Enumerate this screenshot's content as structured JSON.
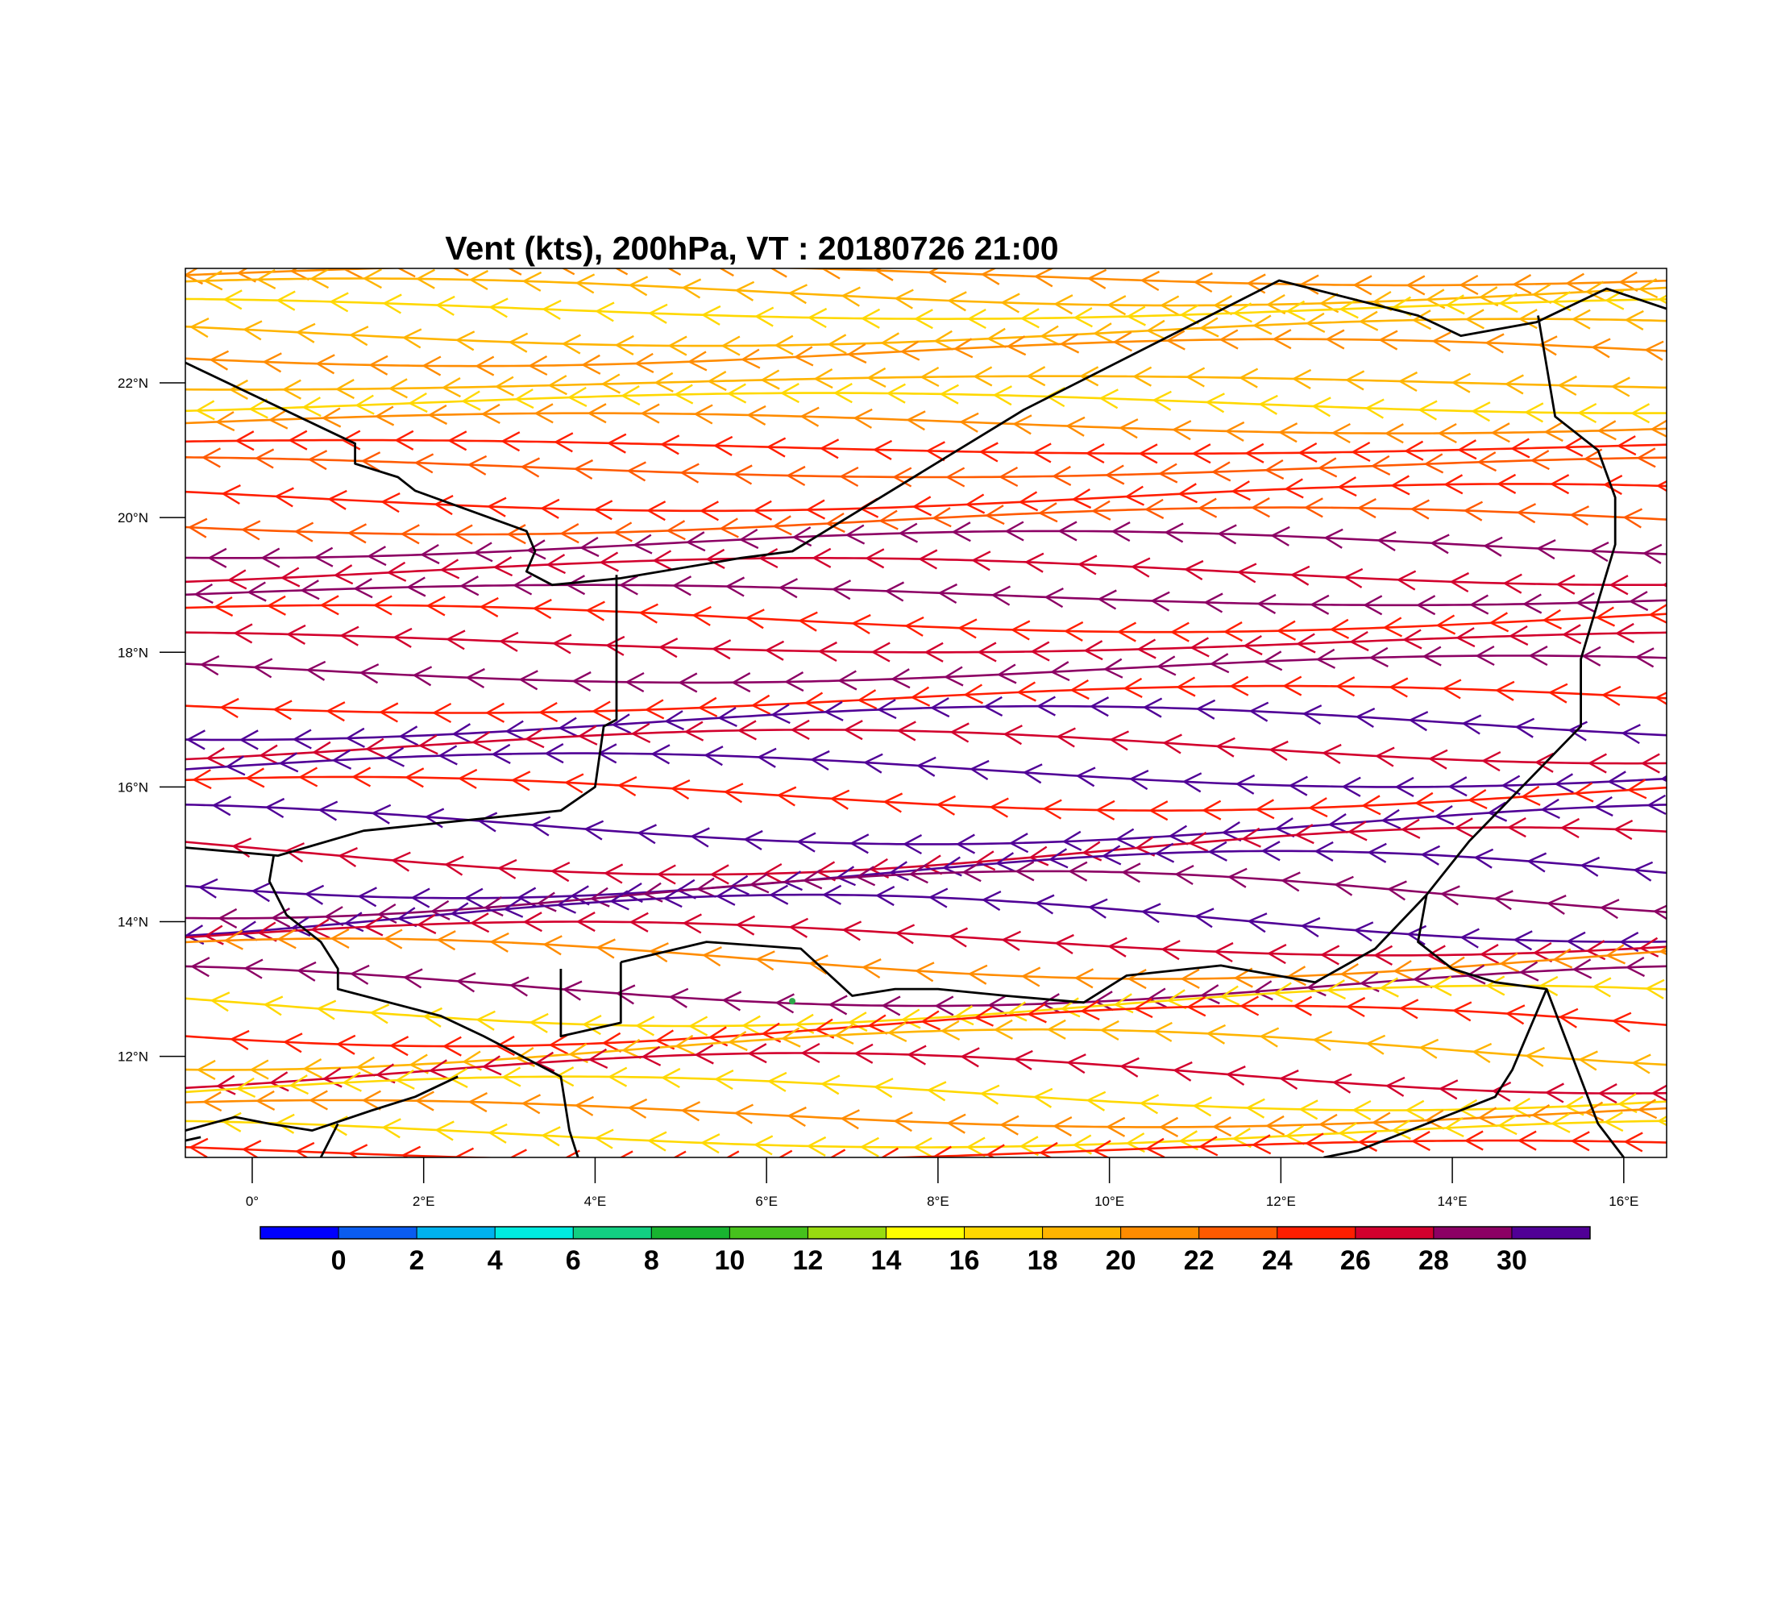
{
  "map": {
    "title": "Vent (kts), 200hPa, VT : 20180726  21:00",
    "lon_range": [
      -0.78,
      16.5
    ],
    "lat_range": [
      10.5,
      23.7
    ],
    "lon_ticks": [
      {
        "lon": 0,
        "label": "0°"
      },
      {
        "lon": 2,
        "label": "2°E"
      },
      {
        "lon": 4,
        "label": "4°E"
      },
      {
        "lon": 6,
        "label": "6°E"
      },
      {
        "lon": 8,
        "label": "8°E"
      },
      {
        "lon": 10,
        "label": "10°E"
      },
      {
        "lon": 12,
        "label": "12°E"
      },
      {
        "lon": 14,
        "label": "14°E"
      },
      {
        "lon": 16,
        "label": "16°E"
      }
    ],
    "lat_ticks": [
      {
        "lat": 12,
        "label": "12°N"
      },
      {
        "lat": 14,
        "label": "14°N"
      },
      {
        "lat": 16,
        "label": "16°N"
      },
      {
        "lat": 18,
        "label": "18°N"
      },
      {
        "lat": 20,
        "label": "20°N"
      },
      {
        "lat": 22,
        "label": "22°N"
      }
    ],
    "wind_direction": "easterly",
    "streamlines": [
      {
        "lat": 23.6,
        "amp": 0.15,
        "speed": 20
      },
      {
        "lat": 23.35,
        "amp": 0.2,
        "speed": 18
      },
      {
        "lat": 23.1,
        "amp": 0.15,
        "speed": 16
      },
      {
        "lat": 22.75,
        "amp": 0.2,
        "speed": 18
      },
      {
        "lat": 22.45,
        "amp": 0.2,
        "speed": 20
      },
      {
        "lat": 22.0,
        "amp": 0.1,
        "speed": 19
      },
      {
        "lat": 21.7,
        "amp": 0.15,
        "speed": 17
      },
      {
        "lat": 21.4,
        "amp": 0.15,
        "speed": 21
      },
      {
        "lat": 21.05,
        "amp": 0.1,
        "speed": 24
      },
      {
        "lat": 20.75,
        "amp": 0.15,
        "speed": 22
      },
      {
        "lat": 20.3,
        "amp": 0.2,
        "speed": 25
      },
      {
        "lat": 19.95,
        "amp": 0.2,
        "speed": 22
      },
      {
        "lat": 19.6,
        "amp": 0.2,
        "speed": 28
      },
      {
        "lat": 19.2,
        "amp": 0.2,
        "speed": 26
      },
      {
        "lat": 18.85,
        "amp": 0.15,
        "speed": 28
      },
      {
        "lat": 18.5,
        "amp": 0.2,
        "speed": 25
      },
      {
        "lat": 18.15,
        "amp": 0.15,
        "speed": 27
      },
      {
        "lat": 17.75,
        "amp": 0.2,
        "speed": 29
      },
      {
        "lat": 17.3,
        "amp": 0.2,
        "speed": 25
      },
      {
        "lat": 16.95,
        "amp": 0.25,
        "speed": 30
      },
      {
        "lat": 16.6,
        "amp": 0.25,
        "speed": 27
      },
      {
        "lat": 16.25,
        "amp": 0.25,
        "speed": 30
      },
      {
        "lat": 15.9,
        "amp": 0.25,
        "speed": 25
      },
      {
        "lat": 15.45,
        "amp": 0.3,
        "speed": 30
      },
      {
        "lat": 15.05,
        "amp": 0.35,
        "speed": 26
      },
      {
        "lat": 14.7,
        "amp": 0.35,
        "speed": 31
      },
      {
        "lat": 14.4,
        "amp": 0.35,
        "speed": 28
      },
      {
        "lat": 14.05,
        "amp": 0.35,
        "speed": 31
      },
      {
        "lat": 13.75,
        "amp": 0.25,
        "speed": 27
      },
      {
        "lat": 13.45,
        "amp": 0.3,
        "speed": 21
      },
      {
        "lat": 13.05,
        "amp": 0.3,
        "speed": 29
      },
      {
        "lat": 12.75,
        "amp": 0.3,
        "speed": 17
      },
      {
        "lat": 12.45,
        "amp": 0.3,
        "speed": 25
      },
      {
        "lat": 12.1,
        "amp": 0.3,
        "speed": 19
      },
      {
        "lat": 11.75,
        "amp": 0.3,
        "speed": 26
      },
      {
        "lat": 11.45,
        "amp": 0.25,
        "speed": 16
      },
      {
        "lat": 11.15,
        "amp": 0.2,
        "speed": 21
      },
      {
        "lat": 10.85,
        "amp": 0.2,
        "speed": 17
      },
      {
        "lat": 10.6,
        "amp": 0.15,
        "speed": 24
      }
    ],
    "borders": [
      [
        [
          -0.78,
          22.3
        ],
        [
          1.2,
          21.1
        ],
        [
          1.2,
          20.8
        ],
        [
          1.7,
          20.6
        ],
        [
          1.9,
          20.4
        ],
        [
          3.2,
          19.8
        ],
        [
          3.3,
          19.5
        ],
        [
          3.2,
          19.2
        ],
        [
          3.5,
          19.0
        ],
        [
          4.3,
          19.1
        ],
        [
          5.7,
          19.4
        ],
        [
          6.3,
          19.5
        ],
        [
          9.0,
          21.6
        ],
        [
          11.98,
          23.52
        ],
        [
          13.6,
          23.0
        ],
        [
          14.1,
          22.7
        ],
        [
          14.98,
          22.9
        ],
        [
          15.8,
          23.4
        ],
        [
          16.5,
          23.1
        ]
      ],
      [
        [
          4.25,
          19.15
        ],
        [
          4.25,
          17.0
        ],
        [
          4.1,
          16.9
        ],
        [
          4.0,
          16.0
        ],
        [
          3.6,
          15.65
        ],
        [
          1.3,
          15.35
        ],
        [
          0.3,
          14.98
        ],
        [
          -0.78,
          15.1
        ]
      ],
      [
        [
          0.25,
          14.98
        ],
        [
          0.2,
          14.6
        ],
        [
          0.4,
          14.1
        ],
        [
          0.8,
          13.7
        ],
        [
          1.0,
          13.3
        ],
        [
          1.0,
          13.0
        ],
        [
          2.2,
          12.6
        ],
        [
          2.7,
          12.3
        ],
        [
          3.6,
          11.7
        ],
        [
          3.7,
          10.9
        ],
        [
          3.8,
          10.5
        ]
      ],
      [
        [
          3.6,
          13.3
        ],
        [
          3.6,
          12.3
        ],
        [
          4.3,
          12.5
        ],
        [
          4.3,
          13.4
        ]
      ],
      [
        [
          4.3,
          13.4
        ],
        [
          5.3,
          13.7
        ],
        [
          6.4,
          13.6
        ],
        [
          7.0,
          12.9
        ],
        [
          7.5,
          13.0
        ],
        [
          8.0,
          13.0
        ],
        [
          8.8,
          12.9
        ],
        [
          9.7,
          12.8
        ],
        [
          10.2,
          13.2
        ],
        [
          11.3,
          13.35
        ],
        [
          12.4,
          13.1
        ],
        [
          13.1,
          13.6
        ],
        [
          13.7,
          14.4
        ],
        [
          14.2,
          15.2
        ],
        [
          15.5,
          16.9
        ],
        [
          15.5,
          17.9
        ],
        [
          15.9,
          19.6
        ],
        [
          15.9,
          20.3
        ],
        [
          15.7,
          21.0
        ],
        [
          15.2,
          21.5
        ],
        [
          15.0,
          23.0
        ]
      ],
      [
        [
          13.7,
          14.4
        ],
        [
          13.6,
          13.7
        ],
        [
          14.0,
          13.3
        ],
        [
          14.5,
          13.1
        ],
        [
          15.1,
          13.0
        ],
        [
          14.9,
          12.4
        ],
        [
          14.7,
          11.8
        ],
        [
          14.5,
          11.4
        ],
        [
          13.5,
          10.9
        ],
        [
          12.9,
          10.6
        ],
        [
          12.5,
          10.5
        ]
      ],
      [
        [
          15.1,
          13.0
        ],
        [
          15.4,
          12.0
        ],
        [
          15.7,
          11.0
        ],
        [
          16.0,
          10.5
        ]
      ],
      [
        [
          -0.78,
          10.9
        ],
        [
          -0.2,
          11.1
        ],
        [
          0.2,
          11.0
        ],
        [
          0.7,
          10.9
        ],
        [
          1.4,
          11.2
        ],
        [
          1.9,
          11.4
        ],
        [
          2.4,
          11.7
        ]
      ],
      [
        [
          0.8,
          10.5
        ],
        [
          1.0,
          11.0
        ]
      ],
      [
        [
          -0.78,
          10.75
        ],
        [
          -0.6,
          10.8
        ]
      ]
    ],
    "station": {
      "lon": 6.3,
      "lat": 12.82,
      "color": "#2ea84a"
    }
  },
  "colorbar": {
    "colors": [
      "#0000ff",
      "#0a5cf0",
      "#00b2ee",
      "#00ebe0",
      "#12cf82",
      "#18b430",
      "#46c21d",
      "#98db10",
      "#ffff00",
      "#ffd800",
      "#ffb400",
      "#ff8c00",
      "#ff5a00",
      "#ff1e00",
      "#d2002d",
      "#8c0064",
      "#500096"
    ],
    "labels": [
      "0",
      "2",
      "4",
      "6",
      "8",
      "10",
      "12",
      "14",
      "16",
      "18",
      "20",
      "22",
      "24",
      "26",
      "28",
      "30"
    ]
  }
}
